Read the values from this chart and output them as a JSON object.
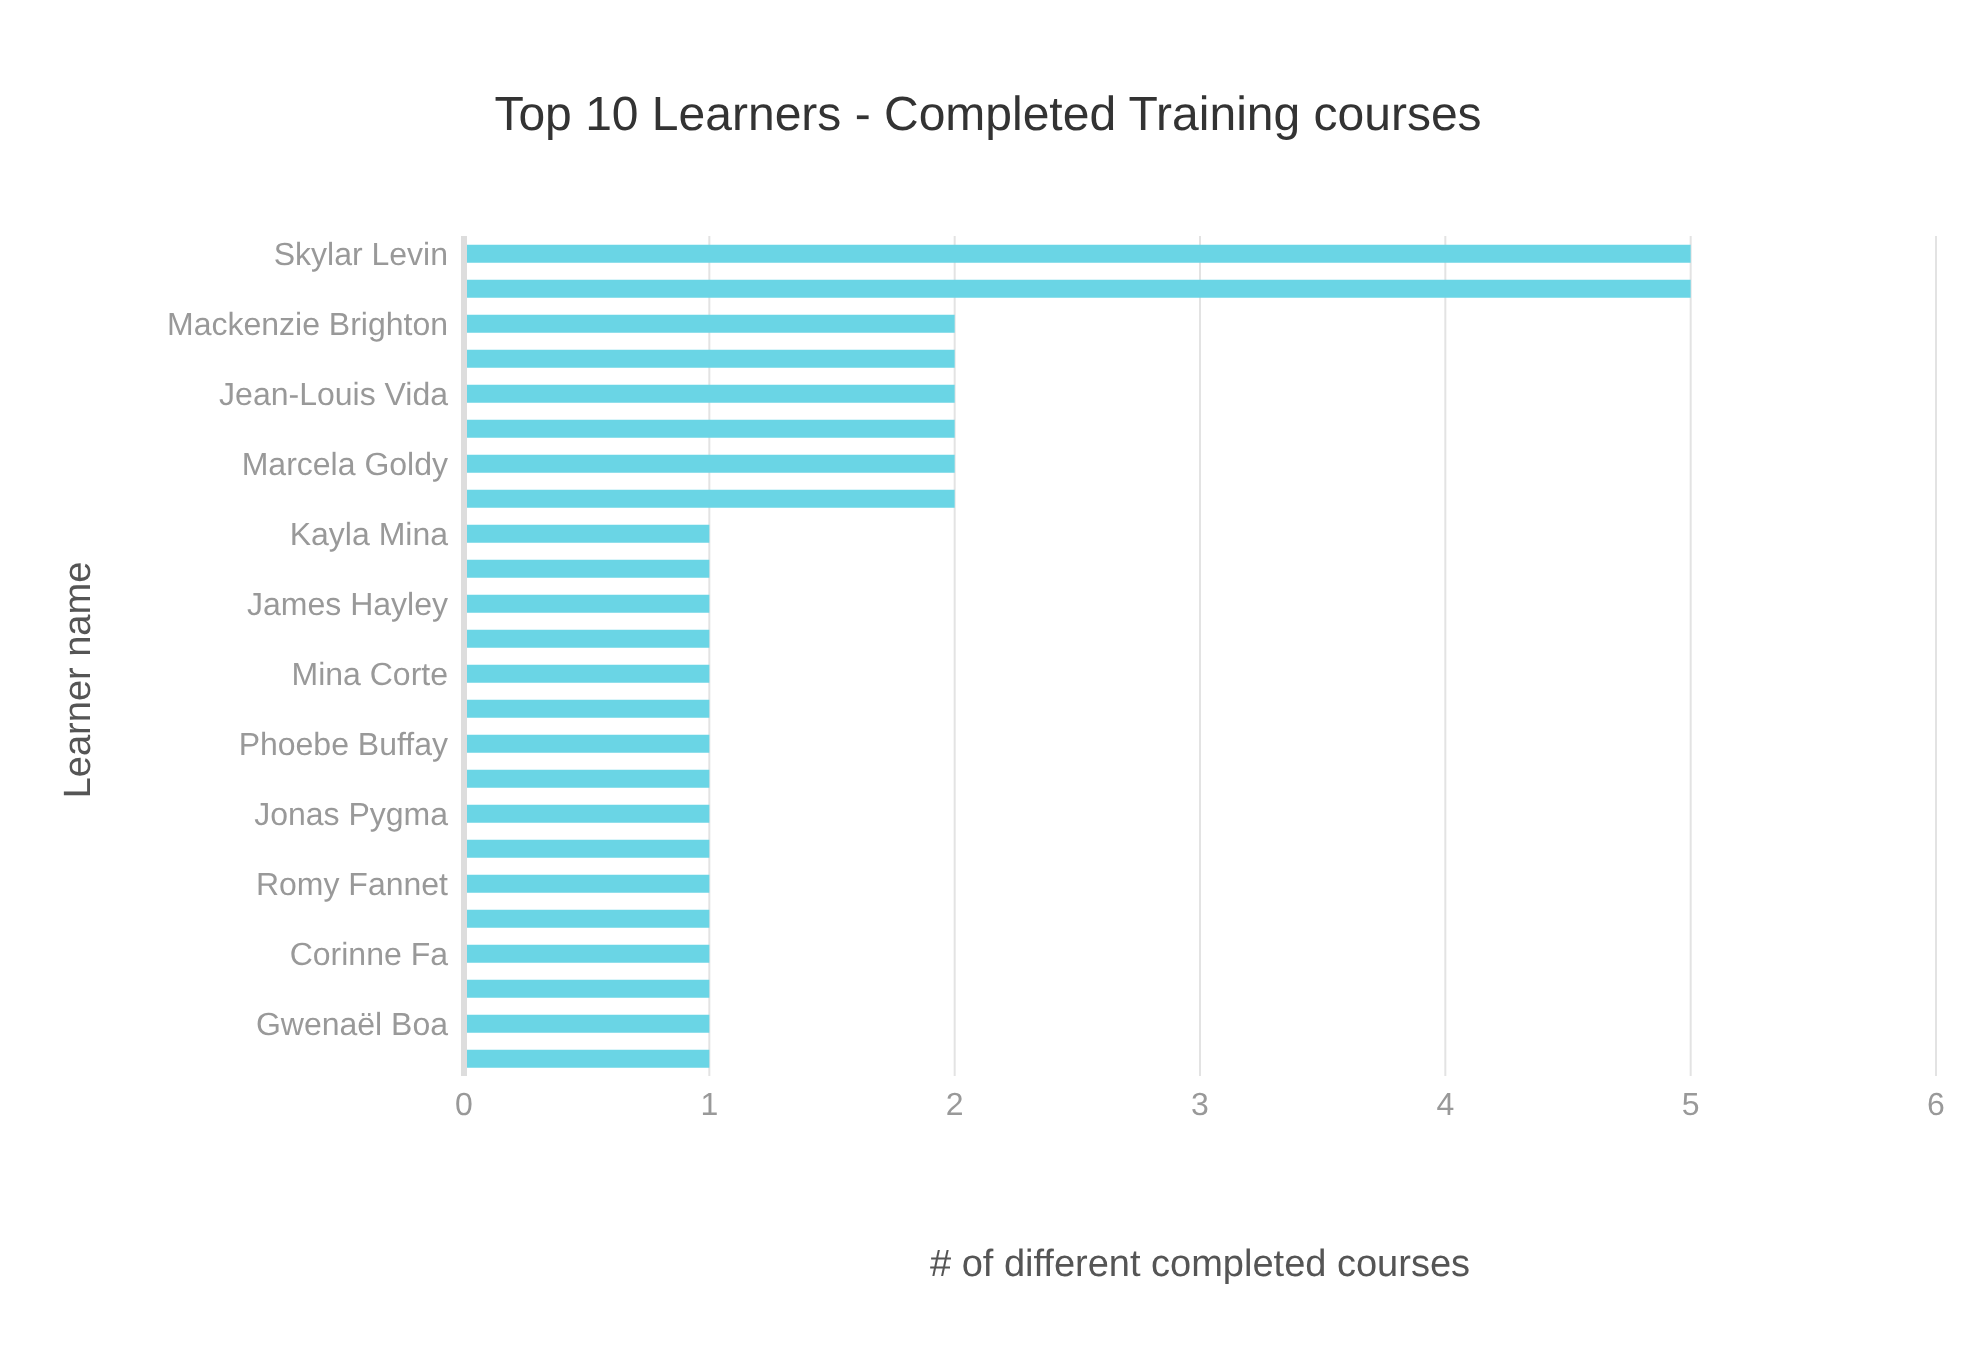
{
  "chart_data": {
    "type": "bar",
    "orientation": "horizontal",
    "title": "Top 10 Learners - Completed Training courses",
    "xlabel": "# of different completed courses",
    "ylabel": "Learner name",
    "categories": [
      "Skylar Levin",
      null,
      "Mackenzie Brighton",
      null,
      "Jean-Louis Vida",
      null,
      "Marcela Goldy",
      null,
      "Kayla Mina",
      null,
      "James Hayley",
      null,
      "Mina Corte",
      null,
      "Phoebe Buffay",
      null,
      "Jonas Pygma",
      null,
      "Romy Fannet",
      null,
      "Corinne Fa",
      null,
      "Gwenaël Boa",
      null
    ],
    "values": [
      5,
      5,
      2,
      2,
      2,
      2,
      2,
      2,
      1,
      1,
      1,
      1,
      1,
      1,
      1,
      1,
      1,
      1,
      1,
      1,
      1,
      1,
      1,
      1
    ],
    "color": "#6ad5e5",
    "xlim": [
      0,
      6
    ],
    "xticks": [
      0,
      1,
      2,
      3,
      4,
      5,
      6
    ],
    "grid": "x"
  }
}
